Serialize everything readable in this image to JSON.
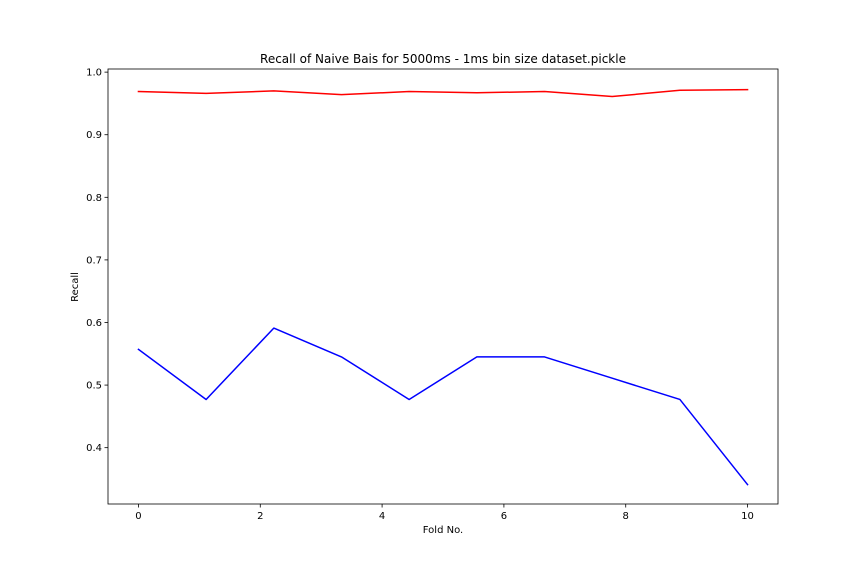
{
  "chart_data": {
    "type": "line",
    "title": "Recall of Naive Bais for 5000ms - 1ms bin size dataset.pickle",
    "xlabel": "Fold No.",
    "ylabel": "Recall",
    "xlim": [
      -0.5,
      10.5
    ],
    "ylim": [
      0.31,
      1.005
    ],
    "x_ticks": [
      0,
      2,
      4,
      6,
      8,
      10
    ],
    "x_tick_labels": [
      "0",
      "2",
      "4",
      "6",
      "8",
      "10"
    ],
    "y_ticks": [
      0.4,
      0.5,
      0.6,
      0.7,
      0.8,
      0.9,
      1.0
    ],
    "y_tick_labels": [
      "0.4",
      "0.5",
      "0.6",
      "0.7",
      "0.8",
      "0.9",
      "1.0"
    ],
    "grid": false,
    "series": [
      {
        "color": "#ff0000",
        "x": [
          0,
          1.111,
          2.222,
          3.333,
          4.444,
          5.556,
          6.667,
          7.778,
          8.889,
          10
        ],
        "values": [
          0.969,
          0.966,
          0.97,
          0.964,
          0.969,
          0.967,
          0.969,
          0.961,
          0.971,
          0.972
        ]
      },
      {
        "color": "#0000ff",
        "x": [
          0,
          1.111,
          2.222,
          3.333,
          4.444,
          5.556,
          6.667,
          7.778,
          8.889,
          10
        ],
        "values": [
          0.557,
          0.477,
          0.591,
          0.545,
          0.477,
          0.545,
          0.545,
          0.511,
          0.477,
          0.341
        ]
      }
    ]
  }
}
